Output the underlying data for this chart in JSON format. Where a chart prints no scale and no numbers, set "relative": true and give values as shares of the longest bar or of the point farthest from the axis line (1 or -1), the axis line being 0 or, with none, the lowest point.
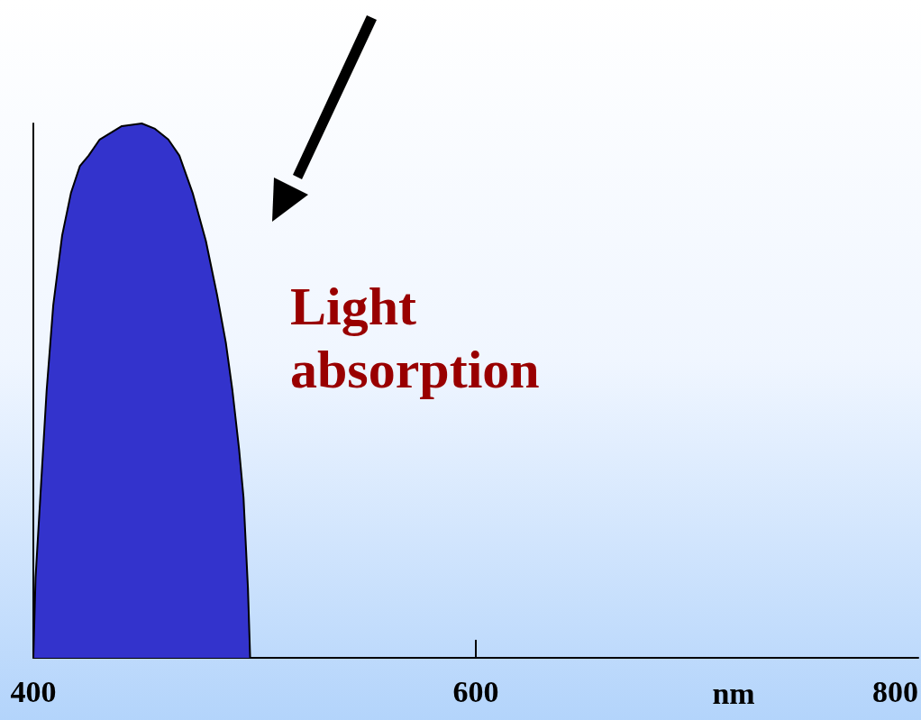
{
  "chart_data": {
    "type": "area",
    "relative": true,
    "xlabel": "nm",
    "xlim": [
      400,
      800
    ],
    "xticks": [
      400,
      600,
      800
    ],
    "x": [
      400,
      401,
      403,
      406,
      409,
      413,
      417,
      421,
      425,
      430,
      434,
      440,
      449,
      455,
      461,
      466,
      472,
      478,
      483,
      487,
      490,
      493,
      495,
      497,
      498
    ],
    "series": [
      {
        "color": "#3333cc",
        "values": [
          0,
          0.15,
          0.29,
          0.5,
          0.66,
          0.79,
          0.87,
          0.92,
          0.94,
          0.97,
          0.98,
          0.995,
          1,
          0.99,
          0.97,
          0.94,
          0.87,
          0.78,
          0.68,
          0.59,
          0.5,
          0.39,
          0.3,
          0.13,
          0
        ]
      }
    ],
    "annotations": [
      "Light absorption"
    ]
  }
}
